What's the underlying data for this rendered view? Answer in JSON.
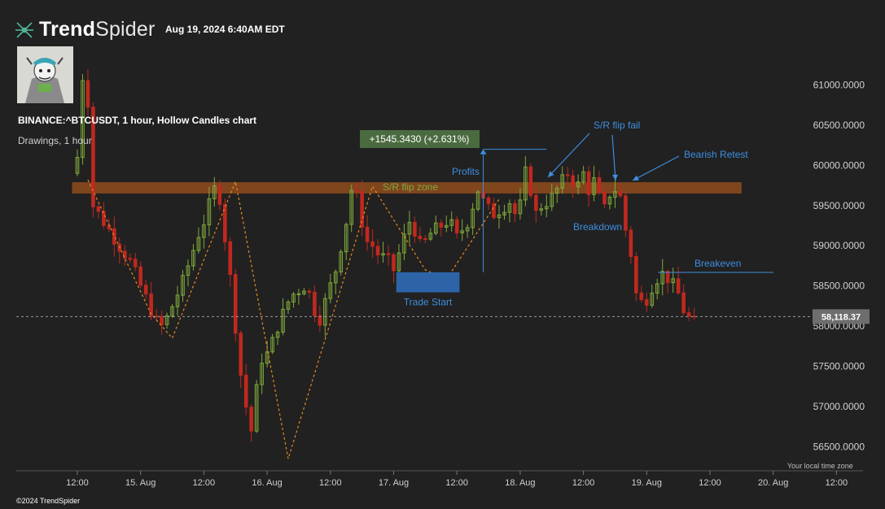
{
  "header": {
    "brand_bold": "Trend",
    "brand_light": "Spider",
    "timestamp": "Aug 19, 2024 6:40AM EDT",
    "symbol_line": "BINANCE:^BTCUSDT, 1 hour, Hollow Candles chart",
    "drawings_line": "Drawings, 1 hour"
  },
  "footer": {
    "timezone_label": "Your local time zone",
    "copyright": "©2024 TrendSpider"
  },
  "colors": {
    "background": "#212121",
    "up": "#7fa93a",
    "down": "#c0281f",
    "accent_blue": "#3d8ee0",
    "zone": "#8a4a1e",
    "pattern": "#e58a1f"
  },
  "chart_data": {
    "type": "candlestick",
    "title": "",
    "xlabel": "",
    "ylabel": "",
    "ylim": [
      56300,
      61500
    ],
    "y_ticks": [
      {
        "value": 61000,
        "label": "61000.0000"
      },
      {
        "value": 60500,
        "label": "60500.0000"
      },
      {
        "value": 60000,
        "label": "60000.0000"
      },
      {
        "value": 59500,
        "label": "59500.0000"
      },
      {
        "value": 59000,
        "label": "59000.0000"
      },
      {
        "value": 58500,
        "label": "58500.0000"
      },
      {
        "value": 58000,
        "label": "58000.0000"
      },
      {
        "value": 57500,
        "label": "57500.0000"
      },
      {
        "value": 57000,
        "label": "57000.0000"
      },
      {
        "value": 56500,
        "label": "56500.0000"
      }
    ],
    "x_ticks": [
      {
        "t": 0,
        "label": "12:00"
      },
      {
        "t": 12,
        "label": "15. Aug"
      },
      {
        "t": 24,
        "label": "12:00"
      },
      {
        "t": 36,
        "label": "16. Aug"
      },
      {
        "t": 48,
        "label": "12:00"
      },
      {
        "t": 60,
        "label": "17. Aug"
      },
      {
        "t": 72,
        "label": "12:00"
      },
      {
        "t": 84,
        "label": "18. Aug"
      },
      {
        "t": 96,
        "label": "12:00"
      },
      {
        "t": 108,
        "label": "19. Aug"
      },
      {
        "t": 120,
        "label": "12:00"
      },
      {
        "t": 132,
        "label": "20. Aug"
      },
      {
        "t": 144,
        "label": "12:00"
      }
    ],
    "last_price": 58118.37,
    "last_price_label": "58,118.37",
    "trend_closes": [
      60100,
      61100,
      60800,
      59500,
      59400,
      59300,
      59200,
      59100,
      59000,
      58900,
      58800,
      58650,
      58500,
      58350,
      58200,
      58050,
      58000,
      58100,
      58250,
      58400,
      58550,
      58750,
      58950,
      59150,
      59300,
      59500,
      59700,
      59600,
      59100,
      58600,
      58000,
      57400,
      57000,
      56700,
      57200,
      57600,
      57650,
      57800,
      58000,
      58150,
      58300,
      58400,
      58450,
      58500,
      58400,
      58200,
      58100,
      58300,
      58500,
      58700,
      59000,
      59300,
      59700,
      59600,
      59300,
      59050,
      59000,
      58900,
      58850,
      58800,
      58700,
      58900,
      59100,
      59300,
      59200,
      59000,
      59050,
      59150,
      59200,
      59250,
      59300,
      59250,
      59100,
      59200,
      59300,
      59500,
      59700,
      59550,
      59450,
      59400,
      59450,
      59500,
      59550,
      59400,
      59500,
      59900,
      59700,
      59400,
      59500,
      59550,
      59600,
      59700,
      59800,
      59900,
      59800,
      59750,
      59900,
      59700,
      59800,
      59600,
      59450,
      59650,
      59700,
      59600,
      59200,
      58900,
      58400,
      58300,
      58350,
      58500,
      58600,
      58650,
      58600,
      58500,
      58400,
      58200,
      58100,
      58118
    ],
    "annotations": [
      {
        "name": "sr-flip-zone",
        "kind": "zone",
        "label": "S/R flip zone",
        "y": [
          59650,
          59790
        ],
        "t": [
          -1,
          126
        ]
      },
      {
        "name": "trade-start",
        "kind": "box",
        "label": "Trade Start",
        "y": [
          58420,
          58670
        ],
        "t": [
          60.5,
          72.5
        ]
      },
      {
        "name": "profit-measure",
        "kind": "measure",
        "label": "+1545.3430 (+2.631%)",
        "y": [
          58670,
          60200
        ],
        "t": [
          77,
          89
        ]
      },
      {
        "name": "profits",
        "kind": "label",
        "label": "Profits",
        "t": 73.5,
        "y": 59930
      },
      {
        "name": "sr-flip-fail",
        "kind": "arrow",
        "label": "S/R flip fail",
        "t": 100,
        "y": 60470,
        "to_t": 90,
        "to_y": 59850
      },
      {
        "name": "breakdown",
        "kind": "arrow",
        "label": "Breakdown",
        "t": 100,
        "y": 59250,
        "to_t": 101,
        "to_y": 59850
      },
      {
        "name": "bearish-retest",
        "kind": "arrow",
        "label": "Bearish Retest",
        "t": 121,
        "y": 60130,
        "to_t": 105,
        "to_y": 59800
      },
      {
        "name": "breakeven",
        "kind": "line",
        "label": "Breakeven",
        "y": 58670,
        "t": [
          110,
          132
        ]
      }
    ],
    "pattern_path": [
      {
        "t": 2,
        "y": 59820
      },
      {
        "t": 14,
        "y": 58150
      },
      {
        "t": 18,
        "y": 57850
      },
      {
        "t": 30,
        "y": 59800
      },
      {
        "t": 40,
        "y": 56350
      },
      {
        "t": 56,
        "y": 59740
      },
      {
        "t": 66,
        "y": 58700
      },
      {
        "t": 70,
        "y": 58580
      },
      {
        "t": 80,
        "y": 59580
      }
    ]
  }
}
